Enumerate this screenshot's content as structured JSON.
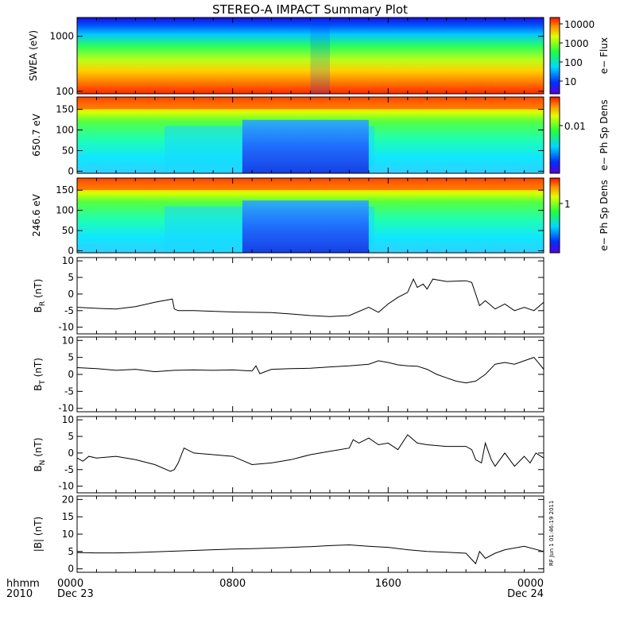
{
  "title": "STEREO-A IMPACT Summary Plot",
  "stamp": "RF Jun 1 01:46:19 2011",
  "footer": {
    "left_line1": "hhmm",
    "left_line2": "2010",
    "date_start": "Dec 23",
    "date_end": "Dec 24"
  },
  "chart_data": [
    {
      "type": "heatmap",
      "id": "swea",
      "ylabel": "SWEA (eV)",
      "yscale": "log",
      "ylim": [
        90,
        2200
      ],
      "yticks": [
        {
          "value": 1000,
          "label": "1000"
        },
        {
          "value": 100,
          "label": "100"
        }
      ],
      "colorbar": {
        "label": "e− Flux",
        "scale": "log",
        "ticks": [
          "10000",
          "1000",
          "100",
          "10"
        ]
      }
    },
    {
      "type": "heatmap",
      "id": "pad650",
      "ylabel": "650.7 eV",
      "ylim": [
        -5,
        180
      ],
      "yticks": [
        {
          "value": 150,
          "label": "150"
        },
        {
          "value": 100,
          "label": "100"
        },
        {
          "value": 50,
          "label": "50"
        },
        {
          "value": 0,
          "label": "0"
        }
      ],
      "colorbar": {
        "label": "e− Ph Sp Dens",
        "scale": "log",
        "ticks": [
          "0.01"
        ]
      }
    },
    {
      "type": "heatmap",
      "id": "pad246",
      "ylabel": "246.6 eV",
      "ylim": [
        -5,
        180
      ],
      "yticks": [
        {
          "value": 150,
          "label": "150"
        },
        {
          "value": 100,
          "label": "100"
        },
        {
          "value": 50,
          "label": "50"
        },
        {
          "value": 0,
          "label": "0"
        }
      ],
      "colorbar": {
        "label": "e− Ph Sp Dens",
        "scale": "log",
        "ticks": [
          "1"
        ]
      }
    },
    {
      "type": "line",
      "id": "br",
      "ylabel": "B",
      "ylabel_sub": "R",
      "ylabel_unit": " (nT)",
      "ylim": [
        -12,
        11
      ],
      "yticks": [
        10,
        5,
        0,
        -5,
        -10
      ],
      "x_hours": [
        0,
        1,
        2,
        3,
        4,
        4.9,
        5,
        5.2,
        6,
        7,
        8,
        9,
        10,
        11,
        12,
        13,
        14,
        15,
        15.5,
        16,
        16.5,
        17,
        17.3,
        17.5,
        17.8,
        18,
        18.3,
        18.5,
        19,
        20,
        20.3,
        20.5,
        20.7,
        21,
        21.5,
        22,
        22.5,
        23,
        23.5,
        24
      ],
      "y": [
        -4,
        -4.3,
        -4.5,
        -3.8,
        -2.5,
        -1.5,
        -4.5,
        -5,
        -5,
        -5.2,
        -5.4,
        -5.5,
        -5.6,
        -6,
        -6.5,
        -6.8,
        -6.5,
        -4,
        -5.5,
        -3,
        -1,
        0.5,
        4.5,
        2,
        3,
        1.5,
        4.5,
        4.3,
        3.8,
        4,
        3.5,
        0,
        -3.5,
        -2,
        -4.5,
        -3,
        -5,
        -4,
        -5,
        -2.5
      ]
    },
    {
      "type": "line",
      "id": "bt",
      "ylabel": "B",
      "ylabel_sub": "T",
      "ylabel_unit": " (nT)",
      "ylim": [
        -11,
        11
      ],
      "yticks": [
        10,
        5,
        0,
        -5,
        -10
      ],
      "x_hours": [
        0,
        1,
        2,
        3,
        4,
        5,
        6,
        7,
        8,
        9,
        9.2,
        9.4,
        10,
        11,
        12,
        13,
        14,
        15,
        15.5,
        16,
        16.5,
        17,
        17.5,
        18,
        18.5,
        19,
        19.5,
        20,
        20.5,
        21,
        21.5,
        22,
        22.5,
        23,
        23.5,
        24
      ],
      "y": [
        2,
        1.7,
        1.2,
        1.5,
        0.8,
        1.2,
        1.3,
        1.2,
        1.3,
        1,
        2.5,
        0.2,
        1.5,
        1.7,
        1.8,
        2.2,
        2.5,
        3,
        4,
        3.5,
        2.8,
        2.5,
        2.4,
        1.5,
        0,
        -1,
        -2,
        -2.5,
        -2,
        0,
        3,
        3.5,
        3,
        4,
        5,
        1.5
      ]
    },
    {
      "type": "line",
      "id": "bn",
      "ylabel": "B",
      "ylabel_sub": "N",
      "ylabel_unit": " (nT)",
      "ylim": [
        -12,
        11
      ],
      "yticks": [
        10,
        5,
        0,
        -5,
        -10
      ],
      "x_hours": [
        0,
        0.3,
        0.6,
        1,
        2,
        3,
        4,
        4.8,
        5,
        5.2,
        5.5,
        6,
        7,
        8,
        9,
        10,
        11,
        12,
        13,
        14,
        14.2,
        14.5,
        15,
        15.5,
        16,
        16.5,
        17,
        17.3,
        17.5,
        18,
        19,
        20,
        20.3,
        20.5,
        20.8,
        21,
        21.3,
        21.5,
        22,
        22.5,
        23,
        23.3,
        23.6,
        24
      ],
      "y": [
        -1.5,
        -2.5,
        -1,
        -1.5,
        -1,
        -2,
        -3.5,
        -5.5,
        -5,
        -3,
        1.5,
        0,
        -0.5,
        -1,
        -3.5,
        -3,
        -2,
        -0.5,
        0.5,
        1.5,
        4,
        3,
        4.5,
        2.5,
        3,
        1,
        5.5,
        4,
        3,
        2.5,
        2,
        2,
        1,
        -2,
        -3,
        3,
        -2,
        -4,
        0,
        -4,
        -1,
        -3,
        0,
        -1.5
      ]
    },
    {
      "type": "line",
      "id": "bmag",
      "ylabel": "|B| (nT)",
      "ylim": [
        -1,
        21
      ],
      "yticks": [
        20,
        15,
        10,
        5,
        0
      ],
      "x_hours": [
        0,
        1,
        2,
        3,
        4,
        5,
        6,
        7,
        8,
        9,
        10,
        11,
        12,
        13,
        14,
        15,
        16,
        17,
        18,
        19,
        20,
        20.5,
        20.7,
        21,
        21.5,
        22,
        23,
        24
      ],
      "y": [
        4.7,
        4.6,
        4.6,
        4.7,
        4.9,
        5.1,
        5.3,
        5.5,
        5.7,
        5.8,
        6,
        6.2,
        6.4,
        6.7,
        6.9,
        6.5,
        6.2,
        5.5,
        5,
        4.8,
        4.5,
        1.5,
        5,
        3,
        4.5,
        5.5,
        6.5,
        5
      ]
    }
  ],
  "xaxis": {
    "range_hours": [
      0,
      24
    ],
    "tick_labels": [
      {
        "hour": 0,
        "label": "0000"
      },
      {
        "hour": 8,
        "label": "0800"
      },
      {
        "hour": 16,
        "label": "1600"
      },
      {
        "hour": 24,
        "label": "0000"
      }
    ],
    "minor_every_hours": 1
  }
}
